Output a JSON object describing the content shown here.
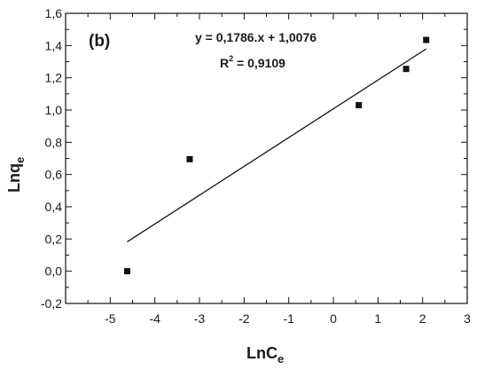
{
  "chart_data": {
    "type": "scatter",
    "panel_label": "(b)",
    "xlabel": {
      "main": "LnC",
      "sub": "e"
    },
    "ylabel": {
      "main": "Lnq",
      "sub": "e"
    },
    "xlim": [
      -6,
      3
    ],
    "ylim": [
      -0.2,
      1.6
    ],
    "x_ticks": [
      -5,
      -4,
      -3,
      -2,
      -1,
      0,
      1,
      2,
      3
    ],
    "x_tick_labels": [
      "-5",
      "-4",
      "-3",
      "-2",
      "-1",
      "0",
      "1",
      "2",
      "3"
    ],
    "y_ticks": [
      -0.2,
      0.0,
      0.2,
      0.4,
      0.6,
      0.8,
      1.0,
      1.2,
      1.4,
      1.6
    ],
    "y_tick_labels": [
      "-0,2",
      "0,0",
      "0,2",
      "0,4",
      "0,6",
      "0,8",
      "1,0",
      "1,2",
      "1,4",
      "1,6"
    ],
    "series": [
      {
        "marker": "square",
        "color": "#111111",
        "points": [
          {
            "x": -4.62,
            "y": 0.0
          },
          {
            "x": -3.22,
            "y": 0.695
          },
          {
            "x": 0.57,
            "y": 1.03
          },
          {
            "x": 1.63,
            "y": 1.255
          },
          {
            "x": 2.08,
            "y": 1.435
          }
        ]
      }
    ],
    "fit_line": {
      "slope": 0.1786,
      "intercept": 1.0076,
      "x_range": [
        -4.62,
        2.08
      ],
      "color": "#111111"
    },
    "annotations": {
      "equation": "y = 0,1786.x + 1,0076",
      "r2_prefix": "R",
      "r2_sup": "2",
      "r2_value": " = 0,9109"
    },
    "grid": false,
    "frame": "box"
  }
}
